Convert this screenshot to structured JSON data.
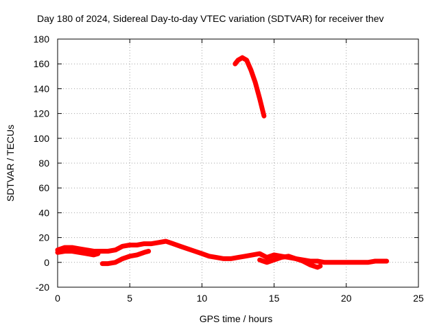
{
  "chart_data": {
    "type": "line",
    "title": "Day 180 of 2024, Sidereal Day-to-day VTEC variation (SDTVAR) for receiver thev",
    "xlabel": "GPS time / hours",
    "ylabel": "SDTVAR / TECUs",
    "xlim": [
      0,
      25
    ],
    "ylim": [
      -20,
      180
    ],
    "xticks": [
      0,
      5,
      10,
      15,
      20,
      25
    ],
    "yticks": [
      -20,
      0,
      20,
      40,
      60,
      80,
      100,
      120,
      140,
      160,
      180
    ],
    "grid": true,
    "color": "#ff0000",
    "series": [
      {
        "name": "band-upper",
        "points": [
          [
            0,
            10
          ],
          [
            0.5,
            12
          ],
          [
            1,
            12
          ],
          [
            1.5,
            11
          ],
          [
            2,
            10
          ],
          [
            2.5,
            9
          ],
          [
            3,
            9
          ],
          [
            3.5,
            9
          ],
          [
            4,
            10
          ],
          [
            4.5,
            13
          ],
          [
            5,
            14
          ],
          [
            5.5,
            14
          ],
          [
            6,
            15
          ],
          [
            6.5,
            15
          ],
          [
            7,
            16
          ],
          [
            7.5,
            17
          ],
          [
            8,
            15
          ],
          [
            8.5,
            13
          ],
          [
            9,
            11
          ],
          [
            9.5,
            9
          ],
          [
            10,
            7
          ],
          [
            10.5,
            5
          ],
          [
            11,
            4
          ],
          [
            11.5,
            3
          ],
          [
            12,
            3
          ],
          [
            12.5,
            4
          ],
          [
            13,
            5
          ],
          [
            13.5,
            6
          ],
          [
            14,
            7
          ],
          [
            14.5,
            4
          ],
          [
            15,
            6
          ],
          [
            15.5,
            5
          ],
          [
            16,
            4
          ],
          [
            16.5,
            3
          ],
          [
            17,
            2
          ],
          [
            17.5,
            1
          ],
          [
            18,
            1
          ],
          [
            18.5,
            0
          ],
          [
            19,
            0
          ],
          [
            19.5,
            0
          ],
          [
            20,
            0
          ],
          [
            20.5,
            0
          ],
          [
            21,
            0
          ],
          [
            21.5,
            0
          ],
          [
            22,
            1
          ],
          [
            22.5,
            1
          ],
          [
            22.8,
            1
          ]
        ]
      },
      {
        "name": "band-lower",
        "points": [
          [
            0,
            8
          ],
          [
            0.5,
            9
          ],
          [
            1,
            9
          ],
          [
            1.5,
            8
          ],
          [
            2,
            7
          ],
          [
            2.5,
            6
          ],
          [
            2.8,
            7
          ]
        ]
      },
      {
        "name": "segment-morning",
        "points": [
          [
            3.1,
            -1
          ],
          [
            3.5,
            -1
          ],
          [
            4,
            0
          ],
          [
            4.5,
            3
          ],
          [
            5,
            5
          ],
          [
            5.5,
            6
          ],
          [
            6,
            8
          ],
          [
            6.3,
            9
          ]
        ]
      },
      {
        "name": "segment-afternoon",
        "points": [
          [
            14.0,
            2
          ],
          [
            14.5,
            0
          ],
          [
            15,
            2
          ],
          [
            15.5,
            4
          ],
          [
            16,
            5
          ],
          [
            16.5,
            3
          ],
          [
            17,
            1
          ],
          [
            17.5,
            -2
          ],
          [
            18,
            -4
          ],
          [
            18.2,
            -3
          ]
        ]
      },
      {
        "name": "spike",
        "points": [
          [
            12.3,
            160
          ],
          [
            12.5,
            163
          ],
          [
            12.8,
            165
          ],
          [
            13.1,
            163
          ],
          [
            13.4,
            155
          ],
          [
            13.7,
            145
          ],
          [
            14.0,
            132
          ],
          [
            14.3,
            118
          ]
        ]
      }
    ]
  }
}
